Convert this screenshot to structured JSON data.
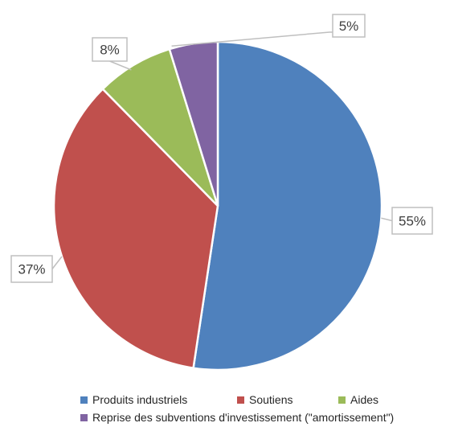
{
  "chart_data": {
    "type": "pie",
    "title": "",
    "categories": [
      "Produits industriels",
      "Soutiens",
      "Aides",
      "Reprise des subventions d'investissement (\"amortissement\")"
    ],
    "values": [
      55,
      37,
      8,
      5
    ],
    "data_labels": [
      "55%",
      "37%",
      "8%",
      "5%"
    ],
    "colors": [
      "#4f81bd",
      "#c0504d",
      "#9bbb59",
      "#8064a2"
    ],
    "legend_position": "bottom"
  }
}
